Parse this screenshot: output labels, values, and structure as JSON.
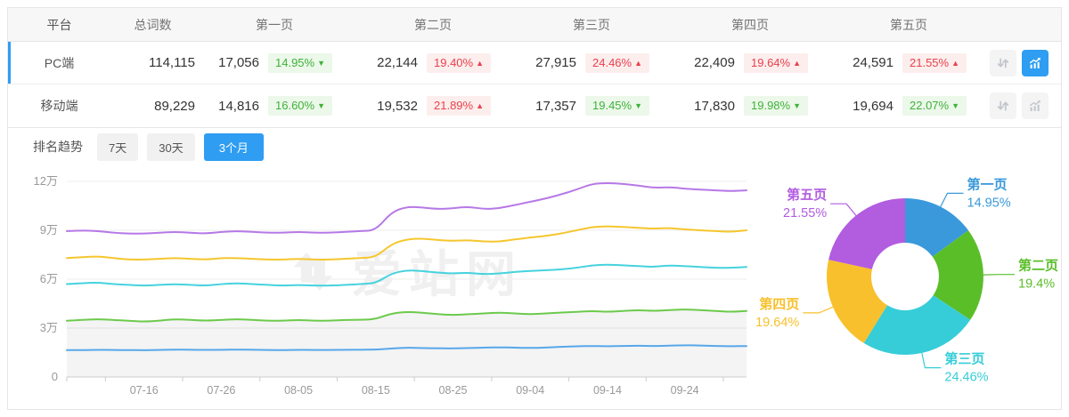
{
  "table": {
    "headers": {
      "platform": "平台",
      "total": "总词数",
      "pages": [
        "第一页",
        "第二页",
        "第三页",
        "第四页",
        "第五页"
      ]
    },
    "rows": [
      {
        "platform": "PC端",
        "total": "114,115",
        "selected": true,
        "chart_active": true,
        "pages": [
          {
            "count": "17,056",
            "pct": "14.95%",
            "dir": "down"
          },
          {
            "count": "22,144",
            "pct": "19.40%",
            "dir": "up"
          },
          {
            "count": "27,915",
            "pct": "24.46%",
            "dir": "up"
          },
          {
            "count": "22,409",
            "pct": "19.64%",
            "dir": "up"
          },
          {
            "count": "24,591",
            "pct": "21.55%",
            "dir": "up"
          }
        ]
      },
      {
        "platform": "移动端",
        "total": "89,229",
        "selected": false,
        "chart_active": false,
        "pages": [
          {
            "count": "14,816",
            "pct": "16.60%",
            "dir": "down"
          },
          {
            "count": "19,532",
            "pct": "21.89%",
            "dir": "up"
          },
          {
            "count": "17,357",
            "pct": "19.45%",
            "dir": "down"
          },
          {
            "count": "17,830",
            "pct": "19.98%",
            "dir": "down"
          },
          {
            "count": "19,694",
            "pct": "22.07%",
            "dir": "down"
          }
        ]
      }
    ]
  },
  "trend": {
    "label": "排名趋势",
    "tabs": [
      {
        "label": "7天",
        "active": false
      },
      {
        "label": "30天",
        "active": false
      },
      {
        "label": "3个月",
        "active": true
      }
    ]
  },
  "watermark": "爱站网",
  "colors": {
    "accent": "#2e9df2",
    "badge_up": "#e8414b",
    "badge_down": "#3fb23a"
  },
  "chart_data": [
    {
      "type": "line",
      "unit": "万",
      "ylim": [
        0,
        12
      ],
      "y_ticks": [
        "0",
        "3万",
        "6万",
        "9万",
        "12万"
      ],
      "x_ticks": [
        "07-16",
        "07-26",
        "08-05",
        "08-15",
        "08-25",
        "09-04",
        "09-14",
        "09-24"
      ],
      "x_tick_indices": [
        5,
        10,
        15,
        20,
        25,
        30,
        35,
        40
      ],
      "grid": true,
      "legend": "none",
      "series": [
        {
          "name": "series-1",
          "color": "#b678e6",
          "values": [
            8.95,
            9.0,
            8.95,
            8.85,
            8.8,
            8.8,
            8.85,
            8.9,
            8.85,
            8.8,
            8.9,
            8.95,
            8.9,
            8.85,
            8.85,
            8.9,
            8.85,
            8.85,
            8.9,
            8.95,
            9.0,
            10.1,
            10.45,
            10.4,
            10.3,
            10.35,
            10.45,
            10.3,
            10.35,
            10.55,
            10.75,
            10.95,
            11.2,
            11.5,
            11.85,
            11.9,
            11.85,
            11.75,
            11.6,
            11.65,
            11.55,
            11.5,
            11.45,
            11.4,
            11.45
          ]
        },
        {
          "name": "series-2",
          "color": "#f6c62e",
          "values": [
            7.3,
            7.35,
            7.4,
            7.3,
            7.2,
            7.2,
            7.25,
            7.3,
            7.25,
            7.2,
            7.3,
            7.3,
            7.25,
            7.2,
            7.2,
            7.25,
            7.2,
            7.2,
            7.25,
            7.3,
            7.35,
            8.15,
            8.45,
            8.5,
            8.4,
            8.35,
            8.4,
            8.3,
            8.3,
            8.45,
            8.55,
            8.65,
            8.8,
            9.0,
            9.2,
            9.25,
            9.2,
            9.15,
            9.1,
            9.15,
            9.05,
            9.0,
            8.95,
            8.9,
            9.0
          ]
        },
        {
          "name": "series-3",
          "color": "#46d2de",
          "values": [
            5.7,
            5.75,
            5.8,
            5.7,
            5.65,
            5.6,
            5.65,
            5.7,
            5.65,
            5.6,
            5.7,
            5.75,
            5.7,
            5.65,
            5.6,
            5.65,
            5.6,
            5.6,
            5.65,
            5.7,
            5.75,
            6.35,
            6.55,
            6.5,
            6.4,
            6.35,
            6.4,
            6.3,
            6.35,
            6.45,
            6.5,
            6.55,
            6.6,
            6.7,
            6.85,
            6.9,
            6.85,
            6.8,
            6.75,
            6.85,
            6.8,
            6.75,
            6.7,
            6.7,
            6.75
          ]
        },
        {
          "name": "series-4",
          "color": "#6cca4c",
          "area": true,
          "values": [
            3.45,
            3.5,
            3.55,
            3.5,
            3.45,
            3.4,
            3.45,
            3.55,
            3.5,
            3.45,
            3.5,
            3.55,
            3.5,
            3.45,
            3.45,
            3.5,
            3.45,
            3.45,
            3.5,
            3.5,
            3.55,
            3.9,
            4.0,
            3.95,
            3.85,
            3.8,
            3.85,
            3.9,
            3.95,
            3.9,
            3.85,
            3.9,
            3.95,
            4.0,
            4.05,
            4.0,
            4.05,
            4.1,
            4.05,
            4.1,
            4.15,
            4.1,
            4.05,
            4.0,
            4.05
          ]
        },
        {
          "name": "series-5",
          "color": "#57a7ea",
          "values": [
            1.65,
            1.65,
            1.67,
            1.66,
            1.65,
            1.64,
            1.66,
            1.68,
            1.67,
            1.66,
            1.67,
            1.68,
            1.67,
            1.66,
            1.65,
            1.67,
            1.66,
            1.66,
            1.67,
            1.67,
            1.68,
            1.75,
            1.8,
            1.78,
            1.76,
            1.75,
            1.78,
            1.8,
            1.82,
            1.8,
            1.78,
            1.8,
            1.85,
            1.88,
            1.9,
            1.88,
            1.9,
            1.92,
            1.9,
            1.92,
            1.95,
            1.93,
            1.9,
            1.88,
            1.9
          ]
        }
      ]
    },
    {
      "type": "pie",
      "donut": true,
      "start_angle_deg": 0,
      "slices": [
        {
          "label": "第一页",
          "value": 14.95,
          "display": "14.95%",
          "color": "#3a99db"
        },
        {
          "label": "第二页",
          "value": 19.4,
          "display": "19.4%",
          "color": "#5abe29"
        },
        {
          "label": "第三页",
          "value": 24.46,
          "display": "24.46%",
          "color": "#36cdd8"
        },
        {
          "label": "第四页",
          "value": 19.64,
          "display": "19.64%",
          "color": "#f7c02c"
        },
        {
          "label": "第五页",
          "value": 21.55,
          "display": "21.55%",
          "color": "#b25ce0"
        }
      ]
    }
  ]
}
